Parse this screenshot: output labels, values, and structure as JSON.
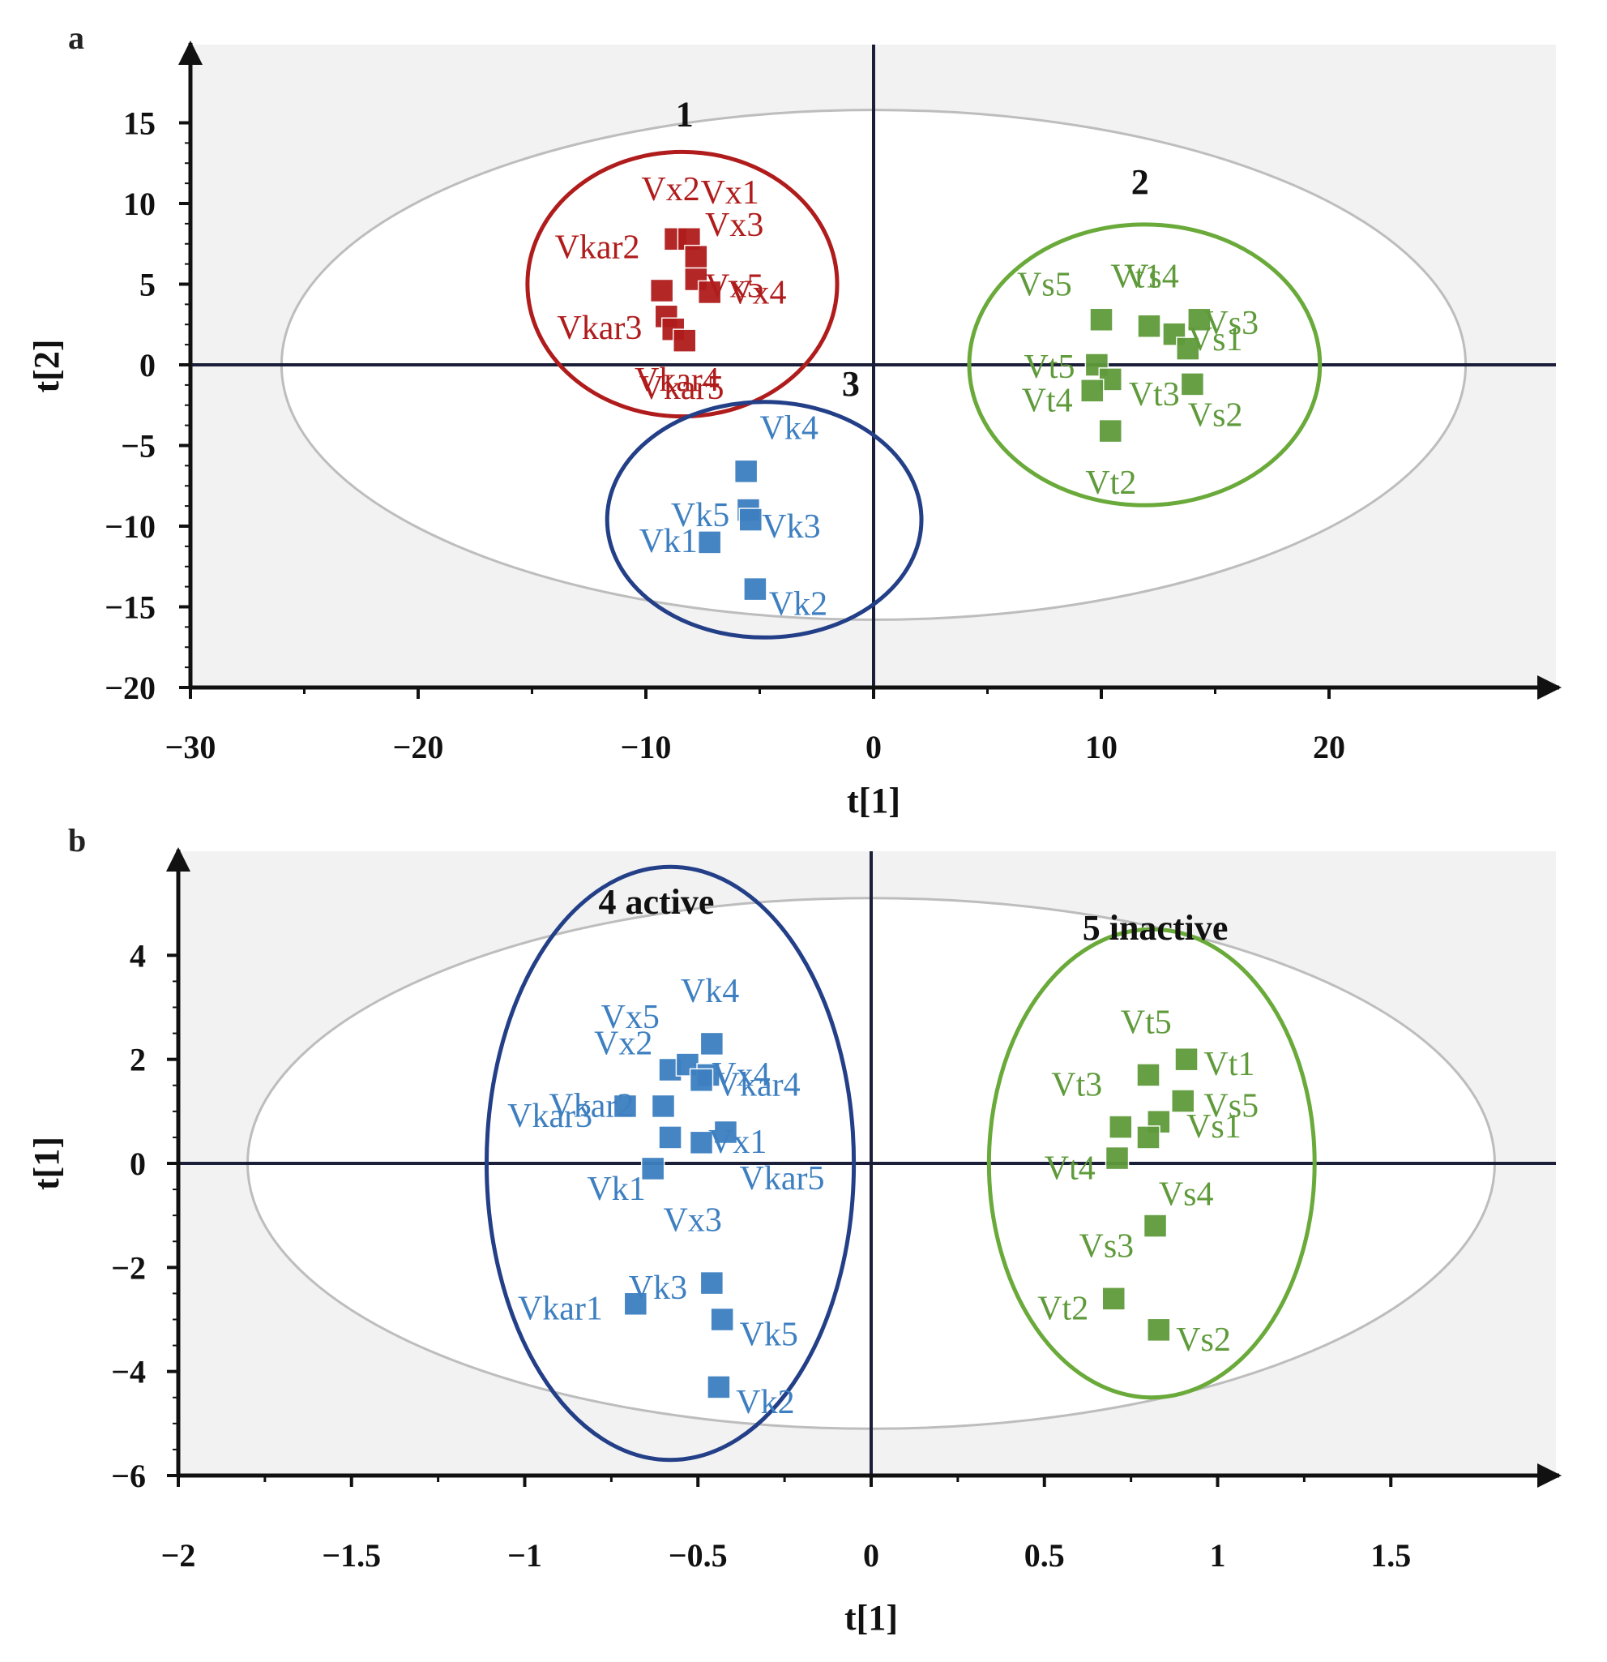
{
  "chart_data": [
    {
      "panel": "a",
      "type": "scatter",
      "xlabel": "t[1]",
      "ylabel": "t[2]",
      "xlim": [
        -30,
        30
      ],
      "ylim": [
        -20,
        20
      ],
      "xticks": [
        -30,
        -20,
        -10,
        0,
        10,
        20
      ],
      "xtick_labels": [
        "−30",
        "−20",
        "−10",
        "0",
        "10",
        "20"
      ],
      "yticks": [
        15,
        10,
        5,
        0,
        -5,
        -10,
        -15,
        -20
      ],
      "ytick_labels": [
        "15",
        "10",
        "5",
        "0",
        "−5",
        "−10",
        "−15",
        "−20"
      ],
      "background": "#f2f2f2",
      "hotelling_ellipse": {
        "cx": 0,
        "cy": 0,
        "rx": 26,
        "ry": 15.8,
        "color": "#bdbdbd"
      },
      "groups": [
        {
          "label": "1",
          "color": "#b01c1c",
          "label_at": [
            -8.3,
            14.8
          ],
          "ellipse": {
            "cx": -8.4,
            "cy": 5,
            "rx": 6.8,
            "ry": 8.2
          }
        },
        {
          "label": "2",
          "color": "#6aaa3a",
          "label_at": [
            11.7,
            10.6
          ],
          "ellipse": {
            "cx": 11.9,
            "cy": 0,
            "rx": 7.7,
            "ry": 8.7
          }
        },
        {
          "label": "3",
          "color": "#233f88",
          "label_at": [
            -1,
            -1.9
          ],
          "ellipse": {
            "cx": -4.8,
            "cy": -9.6,
            "rx": 6.9,
            "ry": 7.3
          }
        }
      ],
      "series": [
        {
          "color": "#b01c1c",
          "points": [
            {
              "label": "Vx2",
              "x": -8.7,
              "y": 7.8,
              "lx": -10.2,
              "ly": 10.2
            },
            {
              "label": "Vx1",
              "x": -8.1,
              "y": 7.8,
              "lx": -7.6,
              "ly": 10.0
            },
            {
              "label": "Vx3",
              "x": -7.8,
              "y": 6.7,
              "lx": -7.4,
              "ly": 8.0
            },
            {
              "label": "Vkar2",
              "x": -9.3,
              "y": 4.6,
              "lx": -14.0,
              "ly": 6.6
            },
            {
              "label": "Vx5",
              "x": -7.8,
              "y": 5.3,
              "lx": -7.4,
              "ly": 4.2
            },
            {
              "label": "Vx4",
              "x": -7.2,
              "y": 4.5,
              "lx": -6.4,
              "ly": 3.8
            },
            {
              "label": "Vkar3",
              "x": -9.1,
              "y": 3.0,
              "lx": -13.9,
              "ly": 1.6
            },
            {
              "label": "Vkar4",
              "x": -8.8,
              "y": 2.2,
              "lx": -10.5,
              "ly": -1.6
            },
            {
              "label": "Vkar5",
              "x": -8.3,
              "y": 1.5,
              "lx": -10.3,
              "ly": -2.1
            }
          ]
        },
        {
          "color": "#5f9a3b",
          "points": [
            {
              "label": "Vs5",
              "x": 10.0,
              "y": 2.8,
              "lx": 6.3,
              "ly": 4.3
            },
            {
              "label": "Vt1",
              "x": 12.1,
              "y": 2.4,
              "lx": 10.4,
              "ly": 4.8
            },
            {
              "label": "Vs4",
              "x": 13.2,
              "y": 1.9,
              "lx": 11.0,
              "ly": 4.8
            },
            {
              "label": "Vs3",
              "x": 14.3,
              "y": 2.8,
              "lx": 14.5,
              "ly": 1.9
            },
            {
              "label": "Vs1",
              "x": 13.8,
              "y": 1.0,
              "lx": 13.8,
              "ly": 0.9
            },
            {
              "label": "Vt5",
              "x": 9.8,
              "y": 0.0,
              "lx": 6.6,
              "ly": -0.8
            },
            {
              "label": "Vt3",
              "x": 10.4,
              "y": -0.9,
              "lx": 11.2,
              "ly": -2.5
            },
            {
              "label": "Vt4",
              "x": 9.6,
              "y": -1.6,
              "lx": 6.5,
              "ly": -2.9
            },
            {
              "label": "Vs2",
              "x": 14.0,
              "y": -1.2,
              "lx": 13.8,
              "ly": -3.8
            },
            {
              "label": "Vt2",
              "x": 10.4,
              "y": -4.1,
              "lx": 9.3,
              "ly": -8.0
            }
          ]
        },
        {
          "color": "#3d7fc0",
          "points": [
            {
              "label": "Vk4",
              "x": -5.6,
              "y": -6.6,
              "lx": -5.0,
              "ly": -4.6
            },
            {
              "label": "Vk5",
              "x": -5.5,
              "y": -9.0,
              "lx": -8.9,
              "ly": -10.0
            },
            {
              "label": "Vk3",
              "x": -5.4,
              "y": -9.6,
              "lx": -4.9,
              "ly": -10.7
            },
            {
              "label": "Vk1",
              "x": -7.2,
              "y": -11.0,
              "lx": -10.3,
              "ly": -11.6
            },
            {
              "label": "Vk2",
              "x": -5.2,
              "y": -13.9,
              "lx": -4.6,
              "ly": -15.5
            }
          ]
        }
      ]
    },
    {
      "panel": "b",
      "type": "scatter",
      "xlabel": "t[1]",
      "ylabel": "t[1]",
      "xlim": [
        -2,
        2
      ],
      "ylim": [
        -6,
        6
      ],
      "xticks": [
        -2,
        -1.5,
        -1,
        -0.5,
        0,
        0.5,
        1,
        1.5
      ],
      "xtick_labels": [
        "−2",
        "−1.5",
        "−1",
        "−0.5",
        "0",
        "0.5",
        "1",
        "1.5"
      ],
      "yticks": [
        4,
        2,
        0,
        -2,
        -4,
        -6
      ],
      "ytick_labels": [
        "4",
        "2",
        "0",
        "−2",
        "−4",
        "−6"
      ],
      "background": "#f2f2f2",
      "hotelling_ellipse": {
        "cx": 0,
        "cy": 0,
        "rx": 1.8,
        "ry": 5.1,
        "color": "#bdbdbd"
      },
      "groups": [
        {
          "label": "4 active",
          "color": "#233f88",
          "label_at": [
            -0.62,
            4.8
          ],
          "ellipse": {
            "cx": -0.58,
            "cy": 0,
            "rx": 0.53,
            "ry": 5.7
          }
        },
        {
          "label": "5 inactive",
          "color": "#6aaa3a",
          "label_at": [
            0.82,
            4.3
          ],
          "ellipse": {
            "cx": 0.81,
            "cy": 0,
            "rx": 0.47,
            "ry": 4.5
          }
        }
      ],
      "series": [
        {
          "color": "#3d7fc0",
          "points": [
            {
              "label": "Vk4",
              "x": -0.46,
              "y": 2.3,
              "lx": -0.55,
              "ly": 3.1
            },
            {
              "label": "Vx5",
              "x": -0.58,
              "y": 1.8,
              "lx": -0.78,
              "ly": 2.6
            },
            {
              "label": "Vx2",
              "x": -0.53,
              "y": 1.9,
              "lx": -0.8,
              "ly": 2.1
            },
            {
              "label": "Vx4",
              "x": -0.47,
              "y": 1.7,
              "lx": -0.46,
              "ly": 1.5
            },
            {
              "label": "Vkar4",
              "x": -0.49,
              "y": 1.6,
              "lx": -0.45,
              "ly": 1.3
            },
            {
              "label": "Vkar2",
              "x": -0.71,
              "y": 1.1,
              "lx": -0.93,
              "ly": 0.9
            },
            {
              "label": "Vkar3",
              "x": -0.6,
              "y": 1.1,
              "lx": -1.05,
              "ly": 0.7
            },
            {
              "label": "Vx1",
              "x": -0.42,
              "y": 0.6,
              "lx": -0.47,
              "ly": 0.2
            },
            {
              "label": "Vkar5",
              "x": -0.49,
              "y": 0.4,
              "lx": -0.38,
              "ly": -0.5
            },
            {
              "label": "Vk1",
              "x": -0.63,
              "y": -0.1,
              "lx": -0.82,
              "ly": -0.7
            },
            {
              "label": "Vx3",
              "x": -0.58,
              "y": 0.5,
              "lx": -0.6,
              "ly": -1.3
            },
            {
              "label": "Vk3",
              "x": -0.46,
              "y": -2.3,
              "lx": -0.7,
              "ly": -2.6
            },
            {
              "label": "Vkar1",
              "x": -0.68,
              "y": -2.7,
              "lx": -1.02,
              "ly": -3.0
            },
            {
              "label": "Vk5",
              "x": -0.43,
              "y": -3.0,
              "lx": -0.38,
              "ly": -3.5
            },
            {
              "label": "Vk2",
              "x": -0.44,
              "y": -4.3,
              "lx": -0.39,
              "ly": -4.8
            }
          ]
        },
        {
          "color": "#5f9a3b",
          "points": [
            {
              "label": "Vt5",
              "x": 0.8,
              "y": 1.7,
              "lx": 0.72,
              "ly": 2.5
            },
            {
              "label": "Vt1",
              "x": 0.91,
              "y": 2.0,
              "lx": 0.96,
              "ly": 1.7
            },
            {
              "label": "Vt3",
              "x": 0.72,
              "y": 0.7,
              "lx": 0.52,
              "ly": 1.3
            },
            {
              "label": "Vs5",
              "x": 0.9,
              "y": 1.2,
              "lx": 0.96,
              "ly": 0.9
            },
            {
              "label": "Vs1",
              "x": 0.83,
              "y": 0.8,
              "lx": 0.91,
              "ly": 0.5
            },
            {
              "label": "Vt4",
              "x": 0.71,
              "y": 0.1,
              "lx": 0.5,
              "ly": -0.3
            },
            {
              "label": "Vs4",
              "x": 0.8,
              "y": 0.5,
              "lx": 0.83,
              "ly": -0.8
            },
            {
              "label": "Vs3",
              "x": 0.82,
              "y": -1.2,
              "lx": 0.6,
              "ly": -1.8
            },
            {
              "label": "Vt2",
              "x": 0.7,
              "y": -2.6,
              "lx": 0.48,
              "ly": -3.0
            },
            {
              "label": "Vs2",
              "x": 0.83,
              "y": -3.2,
              "lx": 0.88,
              "ly": -3.6
            }
          ]
        }
      ]
    }
  ]
}
